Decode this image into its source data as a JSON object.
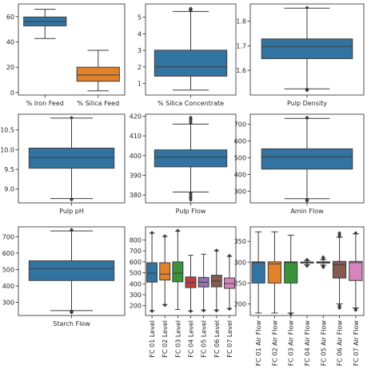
{
  "chart_data": [
    {
      "type": "box",
      "categories": [
        "% Iron Feed",
        "% Silica Feed"
      ],
      "ylim": [
        -2,
        70
      ],
      "yticks": [
        0,
        20,
        40,
        60
      ],
      "boxes": [
        {
          "whisker_low": 42.7,
          "q1": 52.7,
          "median": 56.1,
          "q3": 59.7,
          "whisker_high": 65.8,
          "outliers": [],
          "color": "#3274a1"
        },
        {
          "whisker_low": 1.3,
          "q1": 8.9,
          "median": 13.9,
          "q3": 20.0,
          "whisker_high": 33.4,
          "outliers": [],
          "color": "#e1812c"
        }
      ]
    },
    {
      "type": "box",
      "categories": [
        "% Silica Concentrate"
      ],
      "ylim": [
        0.3,
        5.8
      ],
      "yticks": [
        1,
        2,
        3,
        4,
        5
      ],
      "boxes": [
        {
          "whisker_low": 0.6,
          "q1": 1.44,
          "median": 2.0,
          "q3": 3.01,
          "whisker_high": 5.35,
          "outliers": [
            5.4,
            5.45,
            5.5,
            5.53
          ],
          "color": "#3274a1"
        }
      ]
    },
    {
      "type": "box",
      "categories": [
        "Pulp Density"
      ],
      "ylim": [
        1.5,
        1.87
      ],
      "yticks": [
        1.6,
        1.7,
        1.8
      ],
      "boxes": [
        {
          "whisker_low": 1.525,
          "q1": 1.648,
          "median": 1.697,
          "q3": 1.728,
          "whisker_high": 1.853,
          "outliers": [
            1.519,
            1.522,
            1.524,
            1.855
          ],
          "color": "#3274a1"
        }
      ]
    },
    {
      "type": "box",
      "categories": [
        "Pulp pH"
      ],
      "ylim": [
        8.65,
        10.9
      ],
      "yticks": [
        9.0,
        9.5,
        10.0,
        10.5
      ],
      "boxes": [
        {
          "whisker_low": 8.76,
          "q1": 9.53,
          "median": 9.8,
          "q3": 10.04,
          "whisker_high": 10.8,
          "outliers": [
            8.73,
            8.75,
            10.81
          ],
          "color": "#3274a1"
        }
      ]
    },
    {
      "type": "box",
      "categories": [
        "Pulp Flow"
      ],
      "ylim": [
        376,
        421
      ],
      "yticks": [
        380,
        390,
        400,
        410,
        420
      ],
      "boxes": [
        {
          "whisker_low": 381.5,
          "q1": 394.3,
          "median": 399.2,
          "q3": 402.9,
          "whisker_high": 416.0,
          "outliers": [
            377.5,
            378.5,
            379.0,
            380.0,
            381.0,
            416.5,
            417.5,
            418.5,
            419.3
          ],
          "color": "#3274a1"
        }
      ]
    },
    {
      "type": "box",
      "categories": [
        "Amin Flow"
      ],
      "ylim": [
        230,
        760
      ],
      "yticks": [
        300,
        400,
        500,
        600,
        700
      ],
      "boxes": [
        {
          "whisker_low": 255,
          "q1": 432,
          "median": 505,
          "q3": 553,
          "whisker_high": 735,
          "outliers": [
            242,
            245,
            250,
            737,
            740
          ],
          "color": "#3274a1"
        }
      ]
    },
    {
      "type": "box",
      "categories": [
        "Starch Flow"
      ],
      "ylim": [
        220,
        760
      ],
      "yticks": [
        300,
        400,
        500,
        600,
        700
      ],
      "boxes": [
        {
          "whisker_low": 250,
          "q1": 433,
          "median": 504,
          "q3": 553,
          "whisker_high": 735,
          "outliers": [
            238,
            243,
            247,
            738,
            742
          ],
          "color": "#3274a1"
        }
      ]
    },
    {
      "type": "box",
      "categories": [
        "FC 01 Level",
        "FC 02 Level",
        "FC 03 Level",
        "FC 04 Level",
        "FC 05 Level",
        "FC 06 Level",
        "FC 07 Level"
      ],
      "ylim": [
        110,
        920
      ],
      "yticks": [
        200,
        300,
        400,
        500,
        600,
        700,
        800
      ],
      "boxes": [
        {
          "whisker_low": 155,
          "q1": 415,
          "median": 496,
          "q3": 592,
          "whisker_high": 862,
          "outliers": [
            150,
            865
          ],
          "color": "#3274a1"
        },
        {
          "whisker_low": 210,
          "q1": 434,
          "median": 488,
          "q3": 592,
          "whisker_high": 832,
          "outliers": [
            205,
            835
          ],
          "color": "#e1812c"
        },
        {
          "whisker_low": 165,
          "q1": 418,
          "median": 497,
          "q3": 600,
          "whisker_high": 880,
          "outliers": [
            885
          ],
          "color": "#3a923a"
        },
        {
          "whisker_low": 152,
          "q1": 365,
          "median": 410,
          "q3": 462,
          "whisker_high": 660,
          "outliers": [
            150
          ],
          "color": "#c03d3e"
        },
        {
          "whisker_low": 160,
          "q1": 371,
          "median": 414,
          "q3": 458,
          "whisker_high": 670,
          "outliers": [
            155
          ],
          "color": "#9372b2"
        },
        {
          "whisker_low": 160,
          "q1": 372,
          "median": 425,
          "q3": 478,
          "whisker_high": 700,
          "outliers": [
            155,
            705
          ],
          "color": "#845b53"
        },
        {
          "whisker_low": 175,
          "q1": 358,
          "median": 402,
          "q3": 453,
          "whisker_high": 650,
          "outliers": [
            170,
            655
          ],
          "color": "#d684bd"
        }
      ]
    },
    {
      "type": "box",
      "categories": [
        "FC 01 Air Flow",
        "FC 02 Air Flow",
        "FC 03 Air Flow",
        "FC 04 Air Flow",
        "FC 05 Air Flow",
        "FC 06 Air Flow",
        "FC 07 Air Flow"
      ],
      "ylim": [
        172,
        385
      ],
      "yticks": [
        200,
        250,
        300,
        350
      ],
      "boxes": [
        {
          "whisker_low": 178,
          "q1": 250,
          "median": 299,
          "q3": 301,
          "whisker_high": 373,
          "outliers": [],
          "color": "#3274a1"
        },
        {
          "whisker_low": 178,
          "q1": 250,
          "median": 296,
          "q3": 301,
          "whisker_high": 373,
          "outliers": [],
          "color": "#e1812c"
        },
        {
          "whisker_low": 178,
          "q1": 250,
          "median": 299,
          "q3": 301,
          "whisker_high": 365,
          "outliers": [
            176
          ],
          "color": "#3a923a"
        },
        {
          "whisker_low": 294,
          "q1": 298,
          "median": 299,
          "q3": 300.5,
          "whisker_high": 304,
          "outliers": [
            291,
            292,
            293,
            305,
            306
          ],
          "color": "#c03d3e"
        },
        {
          "whisker_low": 293,
          "q1": 298,
          "median": 299.5,
          "q3": 301,
          "whisker_high": 306,
          "outliers": [
            288,
            290,
            292,
            308,
            310,
            312
          ],
          "color": "#9372b2"
        },
        {
          "whisker_low": 200,
          "q1": 262,
          "median": 294,
          "q3": 302,
          "whisker_high": 360,
          "outliers": [
            190,
            193,
            196,
            362,
            366,
            370
          ],
          "color": "#845b53"
        },
        {
          "whisker_low": 190,
          "q1": 256,
          "median": 299,
          "q3": 302,
          "whisker_high": 368,
          "outliers": [
            185,
            188,
            370
          ],
          "color": "#d684bd"
        }
      ]
    }
  ]
}
